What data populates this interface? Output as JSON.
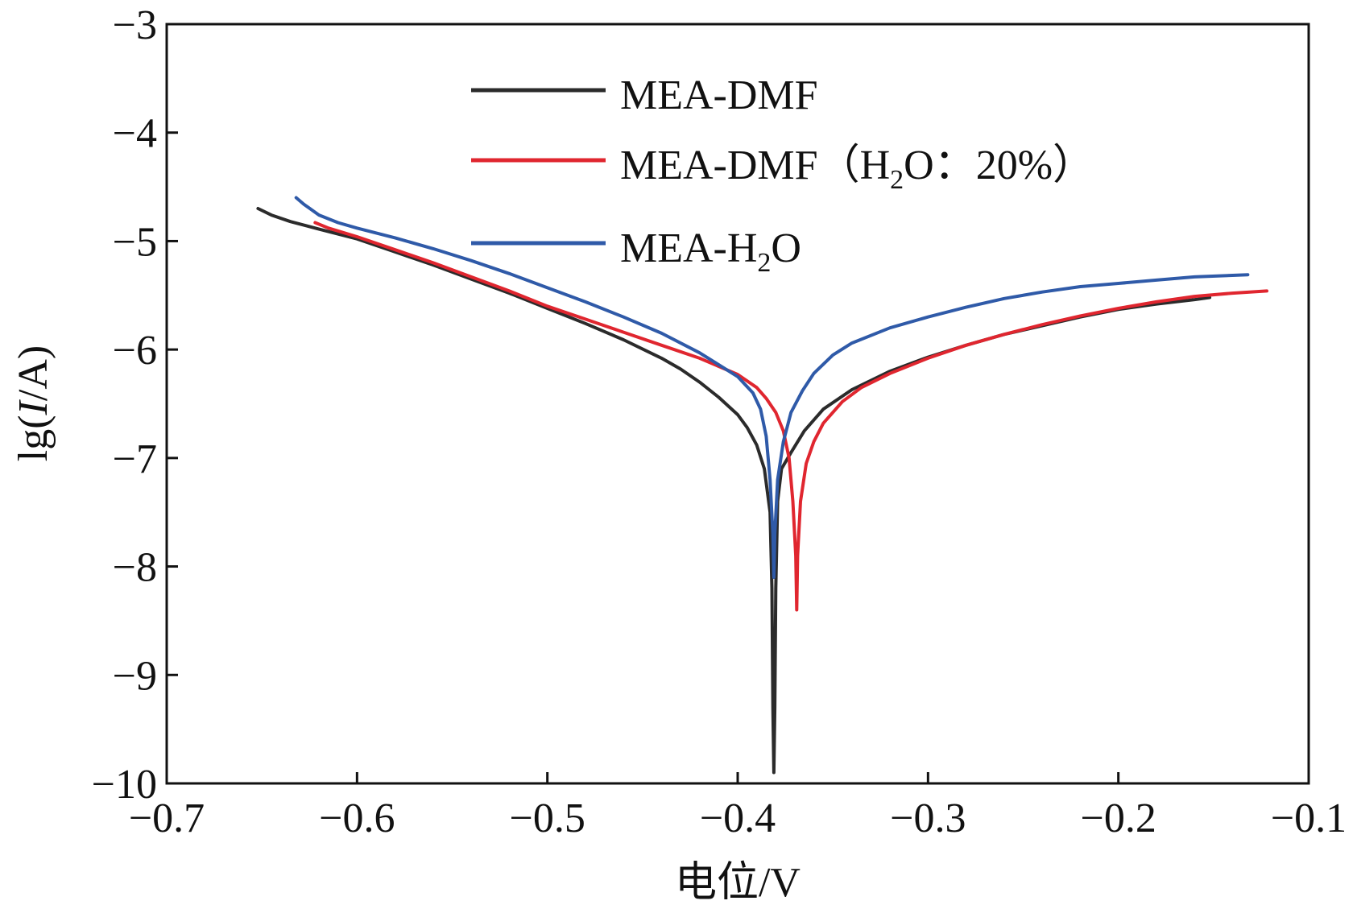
{
  "chart_data": {
    "type": "line",
    "title": "",
    "xlabel": "电位/V",
    "ylabel": {
      "prefix": "lg(",
      "italic": "I",
      "suffix": "/A)"
    },
    "xlim": [
      -0.7,
      -0.1
    ],
    "ylim": [
      -10,
      -3
    ],
    "xticks": [
      -0.7,
      -0.6,
      -0.5,
      -0.4,
      -0.3,
      -0.2,
      -0.1
    ],
    "xtick_labels": [
      "−0.7",
      "−0.6",
      "−0.5",
      "−0.4",
      "−0.3",
      "−0.2",
      "−0.1"
    ],
    "yticks": [
      -10,
      -9,
      -8,
      -7,
      -6,
      -5,
      -4,
      -3
    ],
    "ytick_labels": [
      "−10",
      "−9",
      "−8",
      "−7",
      "−6",
      "−5",
      "−4",
      "−3"
    ],
    "grid": false,
    "legend_position": "top-center",
    "series": [
      {
        "name": "MEA-DMF",
        "legend": {
          "main": "MEA-DMF"
        },
        "color": "#2b2b2b",
        "points": [
          [
            -0.652,
            -4.7
          ],
          [
            -0.645,
            -4.76
          ],
          [
            -0.635,
            -4.82
          ],
          [
            -0.62,
            -4.89
          ],
          [
            -0.6,
            -4.98
          ],
          [
            -0.58,
            -5.1
          ],
          [
            -0.56,
            -5.22
          ],
          [
            -0.54,
            -5.35
          ],
          [
            -0.52,
            -5.48
          ],
          [
            -0.5,
            -5.62
          ],
          [
            -0.48,
            -5.76
          ],
          [
            -0.46,
            -5.91
          ],
          [
            -0.44,
            -6.08
          ],
          [
            -0.43,
            -6.18
          ],
          [
            -0.42,
            -6.3
          ],
          [
            -0.41,
            -6.44
          ],
          [
            -0.4,
            -6.6
          ],
          [
            -0.395,
            -6.72
          ],
          [
            -0.39,
            -6.88
          ],
          [
            -0.386,
            -7.1
          ],
          [
            -0.383,
            -7.5
          ],
          [
            -0.382,
            -8.2
          ],
          [
            -0.3815,
            -9.3
          ],
          [
            -0.381,
            -9.9
          ],
          [
            -0.3805,
            -9.3
          ],
          [
            -0.38,
            -8.2
          ],
          [
            -0.379,
            -7.4
          ],
          [
            -0.377,
            -7.1
          ],
          [
            -0.372,
            -6.95
          ],
          [
            -0.365,
            -6.75
          ],
          [
            -0.355,
            -6.55
          ],
          [
            -0.34,
            -6.37
          ],
          [
            -0.32,
            -6.2
          ],
          [
            -0.3,
            -6.07
          ],
          [
            -0.28,
            -5.96
          ],
          [
            -0.26,
            -5.86
          ],
          [
            -0.24,
            -5.78
          ],
          [
            -0.22,
            -5.7
          ],
          [
            -0.2,
            -5.63
          ],
          [
            -0.18,
            -5.58
          ],
          [
            -0.16,
            -5.54
          ],
          [
            -0.152,
            -5.52
          ]
        ]
      },
      {
        "name": "MEA-DMF (H2O: 20%)",
        "legend": {
          "main": "MEA-DMF（H",
          "sub": "2",
          "rest": "O：20%）"
        },
        "color": "#e0262f",
        "points": [
          [
            -0.622,
            -4.83
          ],
          [
            -0.615,
            -4.88
          ],
          [
            -0.6,
            -4.96
          ],
          [
            -0.58,
            -5.08
          ],
          [
            -0.56,
            -5.2
          ],
          [
            -0.54,
            -5.33
          ],
          [
            -0.52,
            -5.46
          ],
          [
            -0.5,
            -5.6
          ],
          [
            -0.48,
            -5.72
          ],
          [
            -0.46,
            -5.84
          ],
          [
            -0.44,
            -5.96
          ],
          [
            -0.42,
            -6.08
          ],
          [
            -0.4,
            -6.23
          ],
          [
            -0.39,
            -6.35
          ],
          [
            -0.385,
            -6.45
          ],
          [
            -0.38,
            -6.58
          ],
          [
            -0.376,
            -6.75
          ],
          [
            -0.373,
            -7.0
          ],
          [
            -0.371,
            -7.4
          ],
          [
            -0.3695,
            -7.9
          ],
          [
            -0.369,
            -8.4
          ],
          [
            -0.3685,
            -7.9
          ],
          [
            -0.367,
            -7.4
          ],
          [
            -0.364,
            -7.05
          ],
          [
            -0.36,
            -6.85
          ],
          [
            -0.355,
            -6.68
          ],
          [
            -0.345,
            -6.48
          ],
          [
            -0.335,
            -6.35
          ],
          [
            -0.32,
            -6.22
          ],
          [
            -0.3,
            -6.08
          ],
          [
            -0.28,
            -5.96
          ],
          [
            -0.26,
            -5.86
          ],
          [
            -0.24,
            -5.77
          ],
          [
            -0.22,
            -5.69
          ],
          [
            -0.2,
            -5.62
          ],
          [
            -0.18,
            -5.56
          ],
          [
            -0.16,
            -5.51
          ],
          [
            -0.14,
            -5.48
          ],
          [
            -0.122,
            -5.46
          ]
        ]
      },
      {
        "name": "MEA-H2O",
        "legend": {
          "main": "MEA-H",
          "sub": "2",
          "rest": "O"
        },
        "color": "#2f5aa8",
        "points": [
          [
            -0.632,
            -4.6
          ],
          [
            -0.628,
            -4.66
          ],
          [
            -0.62,
            -4.76
          ],
          [
            -0.61,
            -4.83
          ],
          [
            -0.6,
            -4.88
          ],
          [
            -0.58,
            -4.97
          ],
          [
            -0.56,
            -5.07
          ],
          [
            -0.54,
            -5.18
          ],
          [
            -0.52,
            -5.3
          ],
          [
            -0.5,
            -5.43
          ],
          [
            -0.48,
            -5.56
          ],
          [
            -0.46,
            -5.7
          ],
          [
            -0.44,
            -5.85
          ],
          [
            -0.42,
            -6.03
          ],
          [
            -0.4,
            -6.25
          ],
          [
            -0.392,
            -6.4
          ],
          [
            -0.388,
            -6.55
          ],
          [
            -0.385,
            -6.8
          ],
          [
            -0.383,
            -7.2
          ],
          [
            -0.3815,
            -7.7
          ],
          [
            -0.381,
            -8.1
          ],
          [
            -0.3805,
            -7.7
          ],
          [
            -0.379,
            -7.2
          ],
          [
            -0.376,
            -6.85
          ],
          [
            -0.372,
            -6.58
          ],
          [
            -0.366,
            -6.38
          ],
          [
            -0.36,
            -6.22
          ],
          [
            -0.35,
            -6.05
          ],
          [
            -0.34,
            -5.94
          ],
          [
            -0.32,
            -5.8
          ],
          [
            -0.3,
            -5.7
          ],
          [
            -0.28,
            -5.61
          ],
          [
            -0.26,
            -5.53
          ],
          [
            -0.24,
            -5.47
          ],
          [
            -0.22,
            -5.42
          ],
          [
            -0.2,
            -5.39
          ],
          [
            -0.18,
            -5.36
          ],
          [
            -0.16,
            -5.33
          ],
          [
            -0.145,
            -5.32
          ],
          [
            -0.132,
            -5.31
          ]
        ]
      }
    ]
  }
}
